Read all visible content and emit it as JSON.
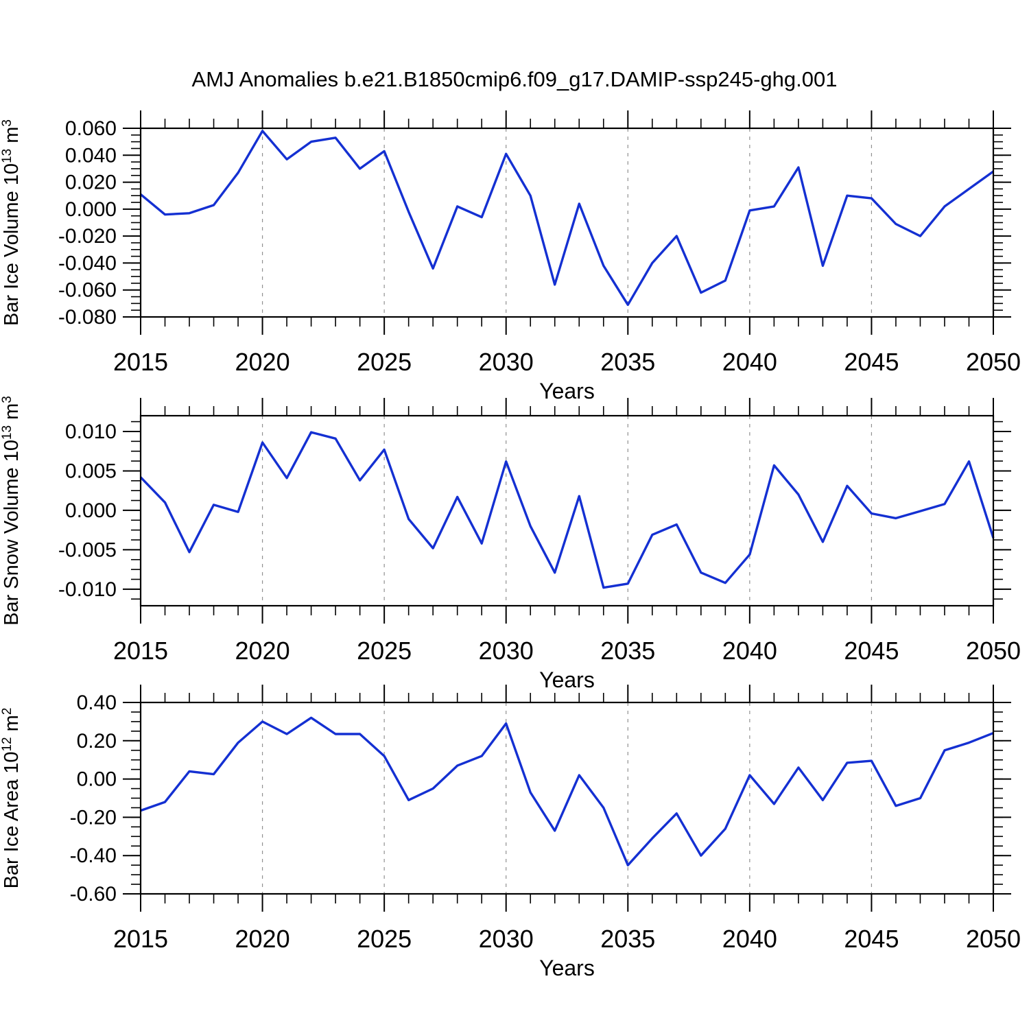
{
  "title": "AMJ Anomalies b.e21.B1850cmip6.f09_g17.DAMIP-ssp245-ghg.001",
  "colors": {
    "line": "#1430d2",
    "grid": "#909090",
    "frame": "#000000",
    "text": "#000000",
    "background": "#ffffff"
  },
  "chart_data": [
    {
      "type": "line",
      "name": "bar-ice-volume",
      "ylabel_parts": [
        {
          "text": "Bar Ice Volume 10",
          "sup": false
        },
        {
          "text": "13",
          "sup": true
        },
        {
          "text": " m",
          "sup": false
        },
        {
          "text": "3",
          "sup": true
        }
      ],
      "xlabel": "Years",
      "x_start": 2015,
      "x_end": 2050,
      "x_major_ticks": [
        2015,
        2020,
        2025,
        2030,
        2035,
        2040,
        2045,
        2050
      ],
      "x_gridlines": [
        2020,
        2025,
        2030,
        2035,
        2040,
        2045
      ],
      "ylim": [
        -0.08,
        0.06
      ],
      "ytick_values": [
        0.06,
        0.04,
        0.02,
        0.0,
        -0.02,
        -0.04,
        -0.06,
        -0.08
      ],
      "ytick_labels": [
        "0.060",
        "0.040",
        "0.020",
        "0.000",
        "-0.020",
        "-0.040",
        "-0.060",
        "-0.080"
      ],
      "y_minor_step": 0.005,
      "x": [
        2015,
        2016,
        2017,
        2018,
        2019,
        2020,
        2021,
        2022,
        2023,
        2024,
        2025,
        2026,
        2027,
        2028,
        2029,
        2030,
        2031,
        2032,
        2033,
        2034,
        2035,
        2036,
        2037,
        2038,
        2039,
        2040,
        2041,
        2042,
        2043,
        2044,
        2045,
        2046,
        2047,
        2048,
        2049,
        2050
      ],
      "values": [
        0.011,
        -0.004,
        -0.003,
        0.003,
        0.027,
        0.058,
        0.037,
        0.05,
        0.053,
        0.03,
        0.043,
        -0.002,
        -0.044,
        0.002,
        -0.006,
        0.041,
        0.01,
        -0.056,
        0.004,
        -0.042,
        -0.071,
        -0.04,
        -0.02,
        -0.062,
        -0.053,
        -0.001,
        0.002,
        0.031,
        -0.042,
        0.01,
        0.008,
        -0.011,
        -0.02,
        0.002,
        0.015,
        0.028
      ]
    },
    {
      "type": "line",
      "name": "bar-snow-volume",
      "ylabel_parts": [
        {
          "text": "Bar Snow Volume 10",
          "sup": false
        },
        {
          "text": "13",
          "sup": true
        },
        {
          "text": " m",
          "sup": false
        },
        {
          "text": "3",
          "sup": true
        }
      ],
      "xlabel": "Years",
      "x_start": 2015,
      "x_end": 2050,
      "x_major_ticks": [
        2015,
        2020,
        2025,
        2030,
        2035,
        2040,
        2045,
        2050
      ],
      "x_gridlines": [
        2020,
        2025,
        2030,
        2035,
        2040,
        2045
      ],
      "ylim": [
        -0.0121,
        0.012
      ],
      "ytick_values": [
        0.01,
        0.005,
        0.0,
        -0.005,
        -0.01
      ],
      "ytick_labels": [
        "0.010",
        "0.005",
        "0.000",
        "-0.005",
        "-0.010"
      ],
      "y_minor_step": 0.00125,
      "x": [
        2015,
        2016,
        2017,
        2018,
        2019,
        2020,
        2021,
        2022,
        2023,
        2024,
        2025,
        2026,
        2027,
        2028,
        2029,
        2030,
        2031,
        2032,
        2033,
        2034,
        2035,
        2036,
        2037,
        2038,
        2039,
        2040,
        2041,
        2042,
        2043,
        2044,
        2045,
        2046,
        2047,
        2048,
        2049,
        2050
      ],
      "values": [
        0.0042,
        0.001,
        -0.0053,
        0.0007,
        -0.0002,
        0.0086,
        0.0041,
        0.0099,
        0.0091,
        0.0038,
        0.0077,
        -0.0011,
        -0.0048,
        0.0017,
        -0.0042,
        0.0062,
        -0.002,
        -0.0079,
        0.0018,
        -0.0098,
        -0.0093,
        -0.0031,
        -0.0018,
        -0.0079,
        -0.0092,
        -0.0056,
        0.0057,
        0.002,
        -0.004,
        0.0031,
        -0.0004,
        -0.001,
        -0.0001,
        0.0008,
        0.0062,
        -0.0035
      ]
    },
    {
      "type": "line",
      "name": "bar-ice-area",
      "ylabel_parts": [
        {
          "text": "Bar Ice Area 10",
          "sup": false
        },
        {
          "text": "12",
          "sup": true
        },
        {
          "text": " m",
          "sup": false
        },
        {
          "text": "2",
          "sup": true
        }
      ],
      "xlabel": "Years",
      "x_start": 2015,
      "x_end": 2050,
      "x_major_ticks": [
        2015,
        2020,
        2025,
        2030,
        2035,
        2040,
        2045,
        2050
      ],
      "x_gridlines": [
        2020,
        2025,
        2030,
        2035,
        2040,
        2045
      ],
      "ylim": [
        -0.6,
        0.4
      ],
      "ytick_values": [
        0.4,
        0.2,
        0.0,
        -0.2,
        -0.4,
        -0.6
      ],
      "ytick_labels": [
        "0.40",
        "0.20",
        "0.00",
        "-0.20",
        "-0.40",
        "-0.60"
      ],
      "y_minor_step": 0.05,
      "x": [
        2015,
        2016,
        2017,
        2018,
        2019,
        2020,
        2021,
        2022,
        2023,
        2024,
        2025,
        2026,
        2027,
        2028,
        2029,
        2030,
        2031,
        2032,
        2033,
        2034,
        2035,
        2036,
        2037,
        2038,
        2039,
        2040,
        2041,
        2042,
        2043,
        2044,
        2045,
        2046,
        2047,
        2048,
        2049,
        2050
      ],
      "values": [
        -0.165,
        -0.12,
        0.04,
        0.025,
        0.19,
        0.3,
        0.235,
        0.32,
        0.235,
        0.235,
        0.12,
        -0.11,
        -0.05,
        0.07,
        0.12,
        0.29,
        -0.07,
        -0.27,
        0.02,
        -0.15,
        -0.45,
        -0.31,
        -0.18,
        -0.4,
        -0.26,
        0.02,
        -0.13,
        0.06,
        -0.11,
        0.085,
        0.095,
        -0.14,
        -0.1,
        0.15,
        0.19,
        0.24
      ]
    }
  ]
}
